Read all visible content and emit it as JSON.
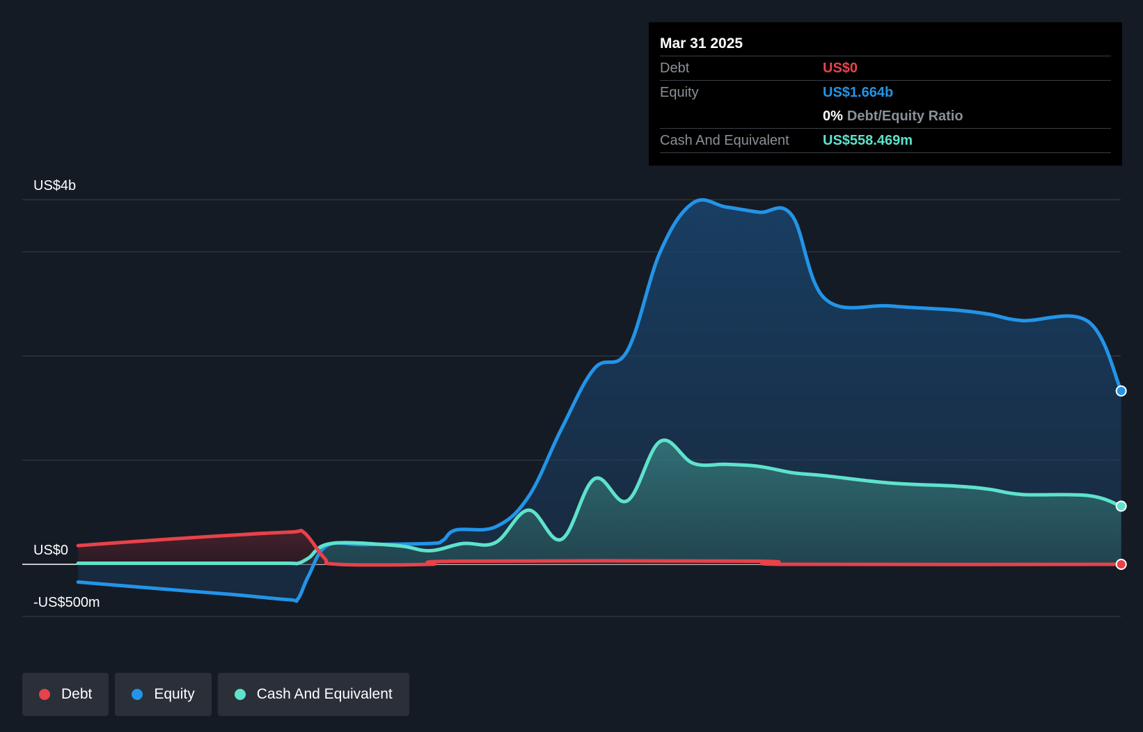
{
  "chart_data": {
    "type": "area",
    "x_ticks": [
      "2018",
      "2019",
      "2020",
      "2021",
      "2022",
      "2023",
      "2024",
      "2025"
    ],
    "ylim": [
      -500,
      3500
    ],
    "y_labels": [
      {
        "value": 3500,
        "label": "US$4b"
      },
      {
        "value": 0,
        "label": "US$0"
      },
      {
        "value": -500,
        "label": "-US$500m"
      }
    ],
    "gridlines": [
      3500,
      3000,
      2000,
      1000,
      0,
      -500
    ],
    "series": [
      {
        "name": "Debt",
        "color": "#e8424a",
        "x": [
          2017.33,
          2018.0,
          2018.5,
          2018.95,
          2019.05,
          2019.2,
          2019.3,
          2020.0,
          2020.2,
          2022.5,
          2022.7,
          2025.25
        ],
        "y": [
          180,
          240,
          280,
          310,
          300,
          60,
          0,
          0,
          30,
          30,
          0,
          0
        ]
      },
      {
        "name": "Equity",
        "color": "#2394e8",
        "x": [
          2017.33,
          2018.0,
          2018.5,
          2018.93,
          2019.0,
          2019.08,
          2019.22,
          2019.5,
          2020.0,
          2020.1,
          2020.2,
          2020.5,
          2020.75,
          2021.0,
          2021.25,
          2021.5,
          2021.75,
          2022.0,
          2022.25,
          2022.5,
          2022.75,
          2023.0,
          2023.5,
          2024.0,
          2024.25,
          2024.5,
          2025.0,
          2025.25
        ],
        "y": [
          -170,
          -240,
          -290,
          -340,
          -330,
          -110,
          180,
          190,
          200,
          230,
          330,
          360,
          650,
          1300,
          1880,
          2050,
          3000,
          3470,
          3430,
          3380,
          3350,
          2550,
          2480,
          2440,
          2400,
          2340,
          2330,
          1664
        ]
      },
      {
        "name": "Cash And Equivalent",
        "color": "#5ee2cc",
        "x": [
          2017.33,
          2018.0,
          2018.5,
          2018.93,
          2019.0,
          2019.08,
          2019.25,
          2019.75,
          2020.0,
          2020.25,
          2020.5,
          2020.75,
          2021.0,
          2021.25,
          2021.5,
          2021.75,
          2022.0,
          2022.25,
          2022.5,
          2022.75,
          2023.0,
          2023.5,
          2024.0,
          2024.25,
          2024.5,
          2025.0,
          2025.25
        ],
        "y": [
          10,
          10,
          10,
          10,
          10,
          60,
          200,
          180,
          130,
          200,
          210,
          520,
          240,
          820,
          610,
          1180,
          970,
          960,
          940,
          880,
          850,
          780,
          750,
          720,
          670,
          660,
          558.469
        ]
      }
    ],
    "legend_placement": "bottom-left"
  },
  "tooltip": {
    "date": "Mar 31 2025",
    "debt_label": "Debt",
    "debt_value": "US$0",
    "equity_label": "Equity",
    "equity_value": "US$1.664b",
    "ratio_value": "0%",
    "ratio_label": "Debt/Equity Ratio",
    "cash_label": "Cash And Equivalent",
    "cash_value": "US$558.469m"
  },
  "legend": [
    {
      "label": "Debt",
      "color": "#e8424a"
    },
    {
      "label": "Equity",
      "color": "#2394e8"
    },
    {
      "label": "Cash And Equivalent",
      "color": "#5ee2cc"
    }
  ]
}
